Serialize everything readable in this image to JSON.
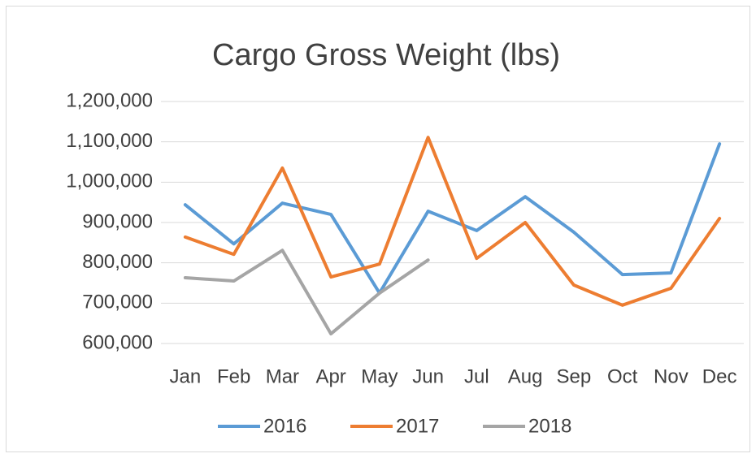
{
  "chart_data": {
    "type": "line",
    "title": "Cargo Gross Weight (lbs)",
    "categories": [
      "Jan",
      "Feb",
      "Mar",
      "Apr",
      "May",
      "Jun",
      "Jul",
      "Aug",
      "Sep",
      "Oct",
      "Nov",
      "Dec"
    ],
    "series": [
      {
        "name": "2016",
        "color": "#5b9bd5",
        "values": [
          944000,
          847000,
          948000,
          920000,
          725000,
          928000,
          880000,
          964000,
          876000,
          771000,
          775000,
          1095000
        ]
      },
      {
        "name": "2017",
        "color": "#ed7d31",
        "values": [
          864000,
          821000,
          1035000,
          765000,
          797000,
          1111000,
          811000,
          900000,
          745000,
          695000,
          737000,
          910000
        ]
      },
      {
        "name": "2018",
        "color": "#a5a5a5",
        "values": [
          763000,
          755000,
          831000,
          624000,
          725000,
          807000,
          null,
          null,
          null,
          null,
          null,
          null
        ]
      }
    ],
    "ylim": [
      600000,
      1200000
    ],
    "yticks": [
      {
        "value": 600000,
        "label": "600,000"
      },
      {
        "value": 700000,
        "label": "700,000"
      },
      {
        "value": 800000,
        "label": "800,000"
      },
      {
        "value": 900000,
        "label": "900,000"
      },
      {
        "value": 1000000,
        "label": "1,000,000"
      },
      {
        "value": 1100000,
        "label": "1,100,000"
      },
      {
        "value": 1200000,
        "label": "1,200,000"
      }
    ],
    "grid": true,
    "legend": "bottom"
  }
}
